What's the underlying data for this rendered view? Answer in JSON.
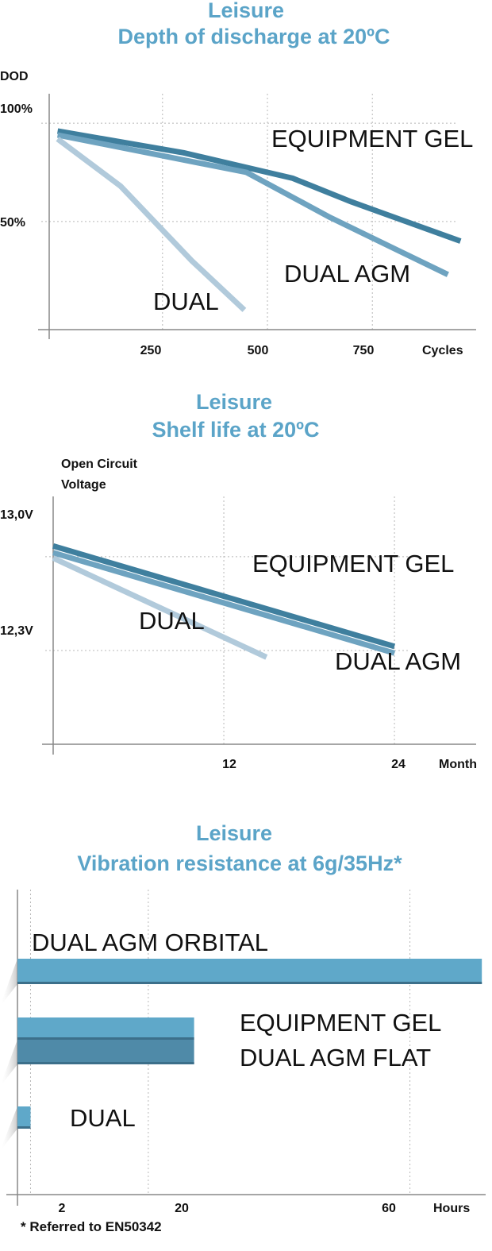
{
  "colors": {
    "title": "#5ba4c8",
    "equipment_gel": "#3f7f9e",
    "dual_agm": "#6ea3c0",
    "dual": "#b1cadb",
    "bar_light": "#5fa8c9",
    "bar_dark": "#4f8aa8"
  },
  "chart_data": [
    {
      "type": "line",
      "title": "Leisure",
      "subtitle": "Depth of discharge at 20ºC",
      "ylabel": "DOD",
      "xlabel": "Cycles",
      "xlim": [
        -20,
        950
      ],
      "ylim": [
        -5,
        115
      ],
      "x_ticks": [
        "250",
        "500",
        "750"
      ],
      "x_tick_values": [
        250,
        500,
        750
      ],
      "y_ticks": [
        "100%",
        "50%"
      ],
      "y_tick_values": [
        100,
        50
      ],
      "grid": true,
      "series": [
        {
          "name": "EQUIPMENT GEL",
          "x": [
            0,
            300,
            560,
            700,
            960
          ],
          "y": [
            96,
            85,
            72,
            60,
            40
          ]
        },
        {
          "name": "DUAL AGM",
          "x": [
            0,
            450,
            650,
            930
          ],
          "y": [
            94,
            75,
            52,
            23
          ]
        },
        {
          "name": "DUAL",
          "x": [
            0,
            150,
            320,
            445
          ],
          "y": [
            92,
            68,
            30,
            5
          ]
        }
      ]
    },
    {
      "type": "line",
      "title": "Leisure",
      "subtitle": "Shelf life at 20ºC",
      "ylabel": "Open Circuit Voltage",
      "xlabel": "Month",
      "xlim": [
        0,
        25
      ],
      "ylim": [
        11.6,
        13.45
      ],
      "x_ticks": [
        "12",
        "24"
      ],
      "x_tick_values": [
        12,
        24
      ],
      "y_ticks": [
        "13,0V",
        "12,3V"
      ],
      "y_tick_values": [
        13.0,
        12.3
      ],
      "grid": true,
      "series": [
        {
          "name": "EQUIPMENT GEL",
          "x": [
            0,
            24
          ],
          "y": [
            13.08,
            12.33
          ]
        },
        {
          "name": "DUAL AGM",
          "x": [
            0,
            24
          ],
          "y": [
            13.03,
            12.28
          ]
        },
        {
          "name": "DUAL",
          "x": [
            0,
            15
          ],
          "y": [
            12.99,
            12.25
          ]
        }
      ]
    },
    {
      "type": "bar",
      "title": "Leisure",
      "subtitle": "Vibration resistance at 6g/35Hz*",
      "xlabel": "Hours",
      "xlim": [
        0,
        70
      ],
      "x_ticks": [
        "2",
        "20",
        "60"
      ],
      "x_tick_values": [
        2,
        20,
        60
      ],
      "grid": true,
      "orientation": "horizontal",
      "categories": [
        "DUAL AGM ORBITAL",
        "EQUIPMENT GEL",
        "DUAL AGM FLAT",
        "DUAL"
      ],
      "values": [
        71,
        27,
        27,
        2
      ],
      "footnote": "* Referred to EN50342"
    }
  ]
}
